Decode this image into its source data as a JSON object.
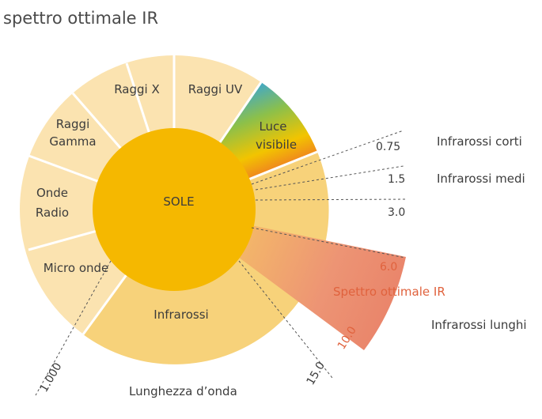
{
  "title": "spettro ottimale IR",
  "center_label": "SOLE",
  "segments": {
    "raggi_x": "Raggi X",
    "raggi_uv": "Raggi UV",
    "raggi_gamma": [
      "Raggi",
      "Gamma"
    ],
    "onde_radio": [
      "Onde",
      "Radio"
    ],
    "micro_onde": "Micro onde",
    "luce_visibile": [
      "Luce",
      "visibile"
    ],
    "infrarossi": "Infrarossi"
  },
  "ticks": {
    "t075": "0.75",
    "t15": "1.5",
    "t30": "3.0",
    "t60": "6.0",
    "t100": "10.0",
    "t150": "15.0",
    "t1000": "1.000"
  },
  "bands": {
    "corti": "Infrarossi corti",
    "medi": "Infrarossi medi",
    "lunghi": "Infrarossi lunghi"
  },
  "optimal_label": "Spettro ottimale IR",
  "axis_label": "Lunghezza d’onda",
  "colors": {
    "outer_light": "#fbe3b0",
    "infrared_band": "#f7d27a",
    "sun": "#f5b800",
    "optimal": "#ea8a6c",
    "accent_text": "#e0623d"
  }
}
